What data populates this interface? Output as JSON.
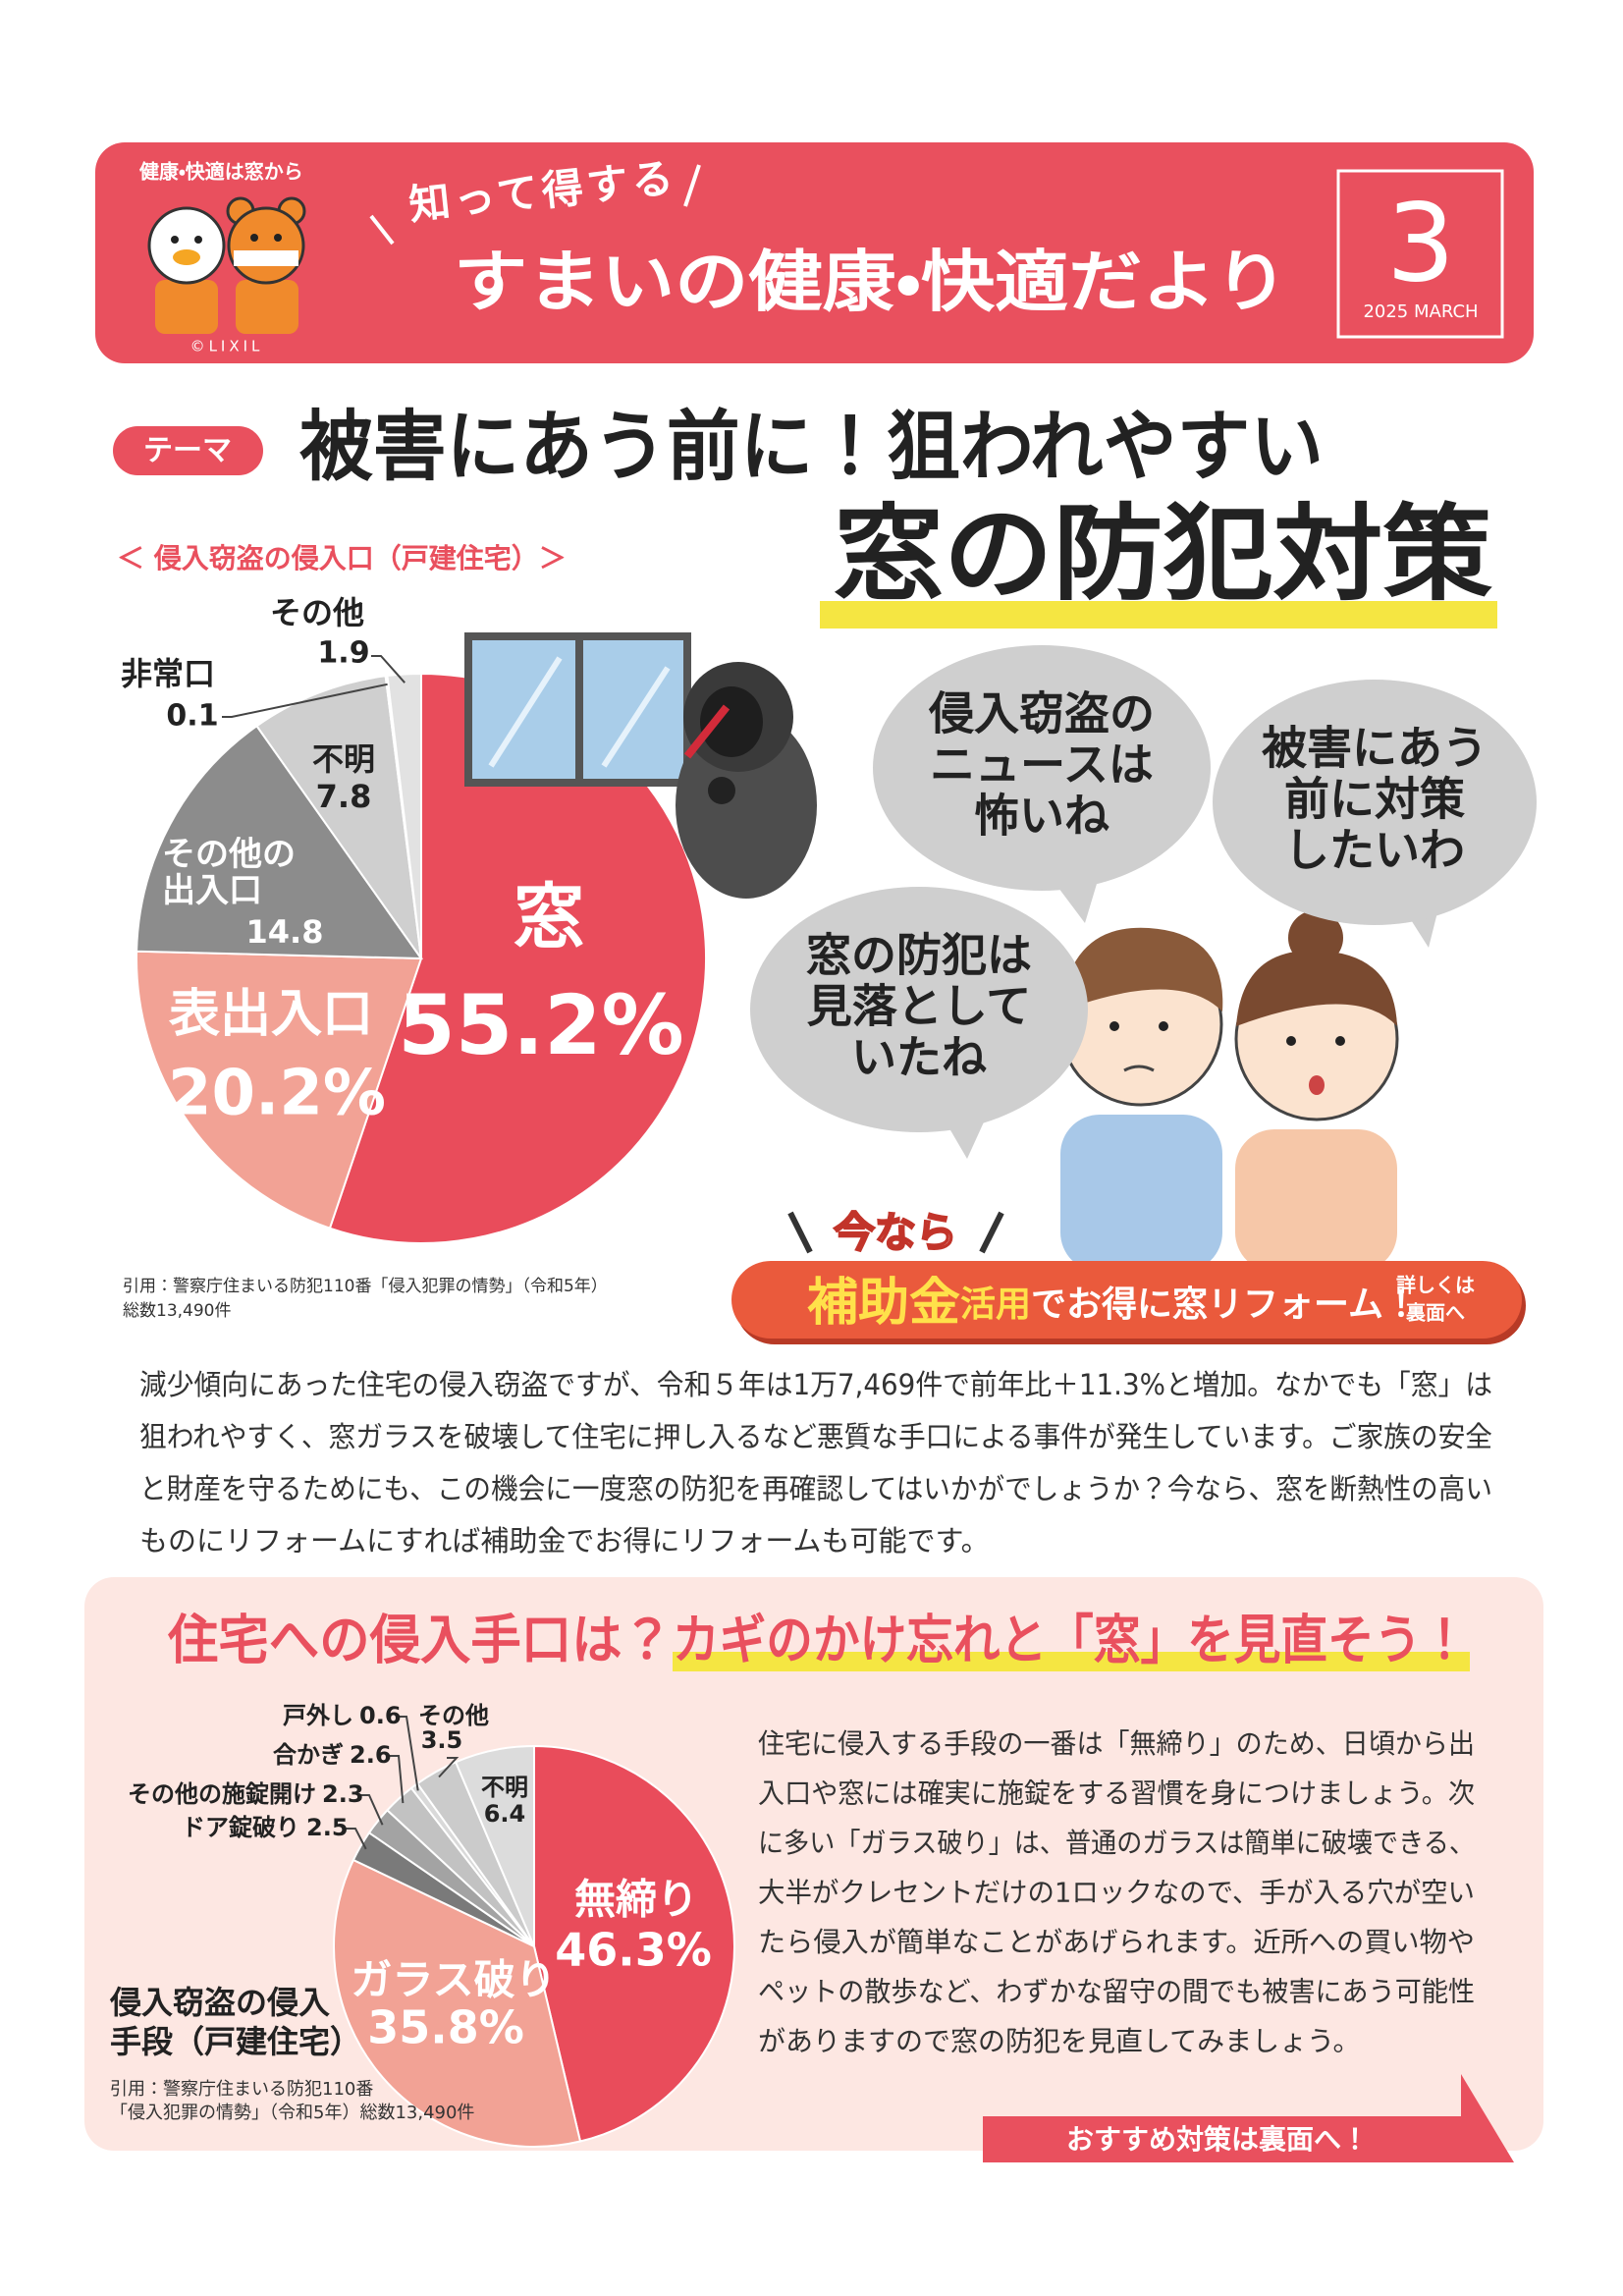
{
  "header": {
    "tagline": "健康・快適は窓から",
    "copyright": "©LIXIL",
    "kicker": "知って得する",
    "title": "すまいの健康・快適だより",
    "issue": "3",
    "date": "2025 MARCH"
  },
  "theme": {
    "badge": "テーマ",
    "title_line1": "被害にあう前に！狙われやすい",
    "title_line2": "窓の防犯対策"
  },
  "chart_data": [
    {
      "type": "pie",
      "title": "＜ 侵入窃盗の侵入口（戸建住宅）＞",
      "categories": [
        "窓",
        "表出入口",
        "その他の出入口",
        "不明",
        "非常口",
        "その他"
      ],
      "values": [
        55.2,
        20.2,
        14.8,
        7.8,
        0.1,
        1.9
      ],
      "value_labels": [
        "55.2%",
        "20.2%",
        "14.8",
        "7.8",
        "0.1",
        "1.9"
      ],
      "colors": [
        "#e94c5b",
        "#f2a295",
        "#8c8c8c",
        "#cfcfcf",
        "#555555",
        "#e2e2e2"
      ],
      "source": [
        "引用：警察庁住まいる防犯110番「侵入犯罪の情勢」（令和5年）",
        "総数13,490件"
      ]
    },
    {
      "type": "pie",
      "title": [
        "侵入窃盗の侵入",
        "手段（戸建住宅）"
      ],
      "categories": [
        "無締り",
        "ガラス破り",
        "ドア錠破り",
        "その他の施錠開け",
        "合かぎ",
        "戸外し",
        "その他",
        "不明"
      ],
      "values": [
        46.3,
        35.8,
        2.5,
        2.3,
        2.6,
        0.6,
        3.5,
        6.4
      ],
      "value_labels": [
        "46.3%",
        "35.8%",
        "2.5",
        "2.3",
        "2.6",
        "0.6",
        "3.5",
        "6.4"
      ],
      "colors": [
        "#e94c5b",
        "#f2a295",
        "#7a7a7a",
        "#a3a3a3",
        "#c2c2c2",
        "#d9d9d9",
        "#cbcbcb",
        "#dcdcdc"
      ],
      "source": [
        "引用：警察庁住まいる防犯110番",
        "「侵入犯罪の情勢」（令和5年）総数13,490件"
      ]
    }
  ],
  "bubbles": [
    [
      "侵入窃盗の",
      "ニュースは",
      "怖いね"
    ],
    [
      "被害にあう",
      "前に対策",
      "したいわ"
    ],
    [
      "窓の防犯は",
      "見落として",
      "いたね"
    ]
  ],
  "banner": {
    "lead": "今なら",
    "highlight": "補助金",
    "highlight_sub": "活用",
    "text": "でお得に窓リフォーム！",
    "more": [
      "詳しくは",
      "裏面へ"
    ]
  },
  "intro": [
    "減少傾向にあった住宅の侵入窃盗ですが、令和５年は1万7,469件で前年比＋11.3%と増加。なかでも「窓」は",
    "狙われやすく、窓ガラスを破壊して住宅に押し入るなど悪質な手口による事件が発生しています。ご家族の安全",
    "と財産を守るためにも、この機会に一度窓の防犯を再確認してはいかがでしょうか？今なら、窓を断熱性の高い",
    "ものにリフォームにすれば補助金でお得にリフォームも可能です。"
  ],
  "section": {
    "heading_1": "住宅への侵入手口は？",
    "heading_2": "カギのかけ忘れと「窓」を見直そう！",
    "body": [
      "住宅に侵入する手段の一番は「無締り」のため、日頃から出",
      "入口や窓には確実に施錠をする習慣を身につけましょう。次",
      "に多い「ガラス破り」は、普通のガラスは簡単に破壊できる、",
      "大半がクレセントだけの1ロックなので、手が入る穴が空い",
      "たら侵入が簡単なことがあげられます。近所への買い物や",
      "ペットの散歩など、わずかな留守の間でも被害にあう可能性",
      "がありますので窓の防犯を見直してみましょう。"
    ],
    "cta": "おすすめ対策は裏面へ！"
  }
}
